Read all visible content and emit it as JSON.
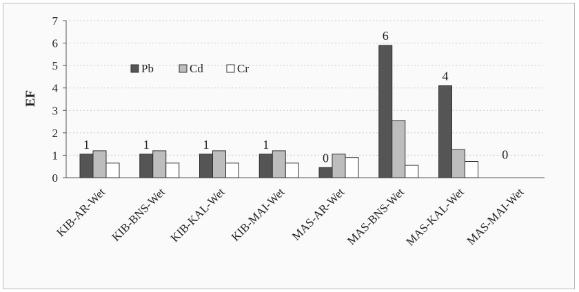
{
  "chart_data": {
    "type": "bar",
    "ylabel": "EF",
    "ylim": [
      0,
      7
    ],
    "yticks": [
      "0",
      "1",
      "2",
      "3",
      "4",
      "5",
      "6",
      "7"
    ],
    "grid": "horizontal-dotted",
    "legend_position": "top-left",
    "categories": [
      "KIB-AR-Wet",
      "KIB-BNS-Wet",
      "KIB-KAL-Wet",
      "KIB-MAI-Wet",
      "MAS-AR-Wet",
      "MAS-BNS-Wet",
      "MAS-KAL-Wet",
      "MAS-MAI-Wet"
    ],
    "series": [
      {
        "name": "Pb",
        "color": "#555555",
        "values": [
          1.05,
          1.05,
          1.05,
          1.05,
          0.45,
          5.9,
          4.1,
          0
        ]
      },
      {
        "name": "Cd",
        "color": "#bdbdbd",
        "values": [
          1.2,
          1.2,
          1.2,
          1.2,
          1.05,
          2.55,
          1.25,
          0
        ]
      },
      {
        "name": "Cr",
        "color": "#ffffff",
        "values": [
          0.65,
          0.65,
          0.65,
          0.65,
          0.9,
          0.55,
          0.72,
          0
        ]
      }
    ],
    "data_labels": [
      "1",
      "1",
      "1",
      "1",
      "0",
      "6",
      "4",
      "0"
    ]
  }
}
